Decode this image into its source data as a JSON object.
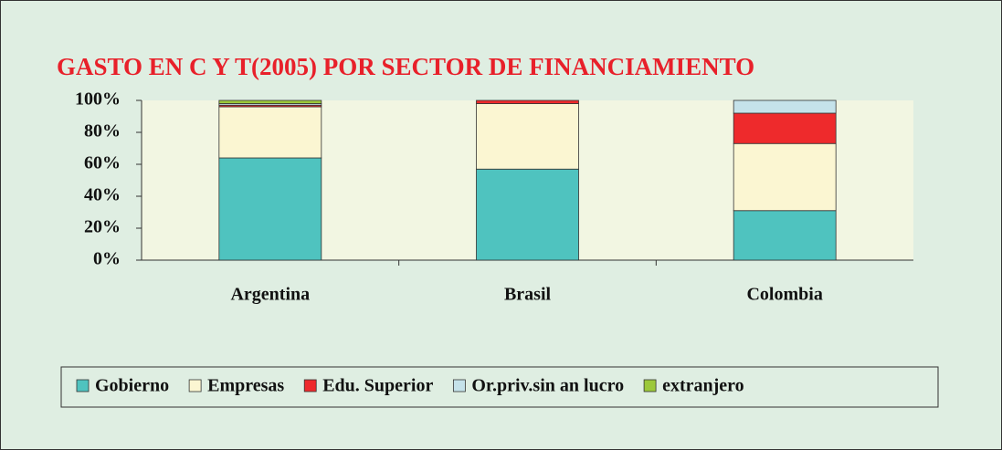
{
  "chart_data": {
    "type": "stacked_bar",
    "title": "GASTO EN C Y T(2005)  POR SECTOR DE FINANCIAMIENTO",
    "categories": [
      "Argentina",
      "Brasil",
      "Colombia"
    ],
    "series": [
      {
        "name": "Gobierno",
        "color": "#4fc3bf",
        "values": [
          64,
          57,
          31
        ]
      },
      {
        "name": "Empresas",
        "color": "#fbf6d2",
        "values": [
          32,
          41,
          42
        ]
      },
      {
        "name": "Edu. Superior",
        "color": "#ee2a2c",
        "values": [
          1,
          2,
          19
        ]
      },
      {
        "name": "Or.priv.sin an lucro",
        "color": "#c5e2ea",
        "values": [
          1,
          0,
          8
        ]
      },
      {
        "name": "extranjero",
        "color": "#9cc83a",
        "values": [
          2,
          0,
          0
        ]
      }
    ],
    "ylim": [
      0,
      100
    ],
    "yticks": [
      {
        "value": 0,
        "label": "0%"
      },
      {
        "value": 20,
        "label": "20%"
      },
      {
        "value": 40,
        "label": "40%"
      },
      {
        "value": 60,
        "label": "60%"
      },
      {
        "value": 80,
        "label": "80%"
      },
      {
        "value": 100,
        "label": "100%"
      }
    ],
    "grid": false
  }
}
